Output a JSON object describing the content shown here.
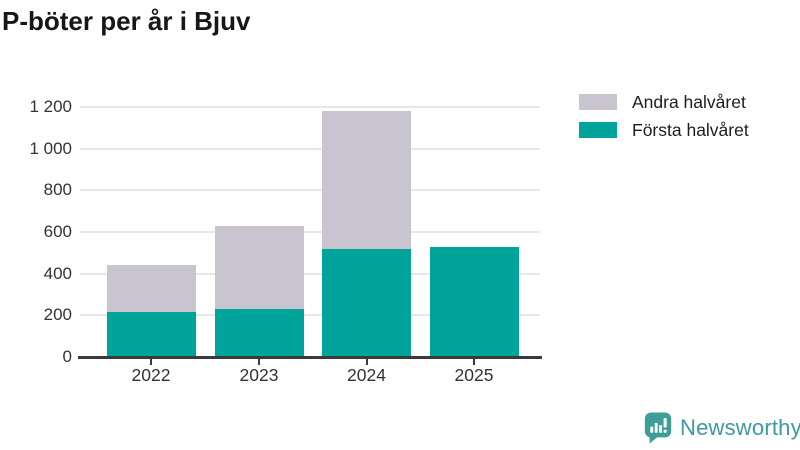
{
  "chart_data": {
    "type": "bar",
    "stacked": true,
    "title": "P-böter per år i Bjuv",
    "categories": [
      "2022",
      "2023",
      "2024",
      "2025"
    ],
    "series": [
      {
        "name": "Första halvåret",
        "color": "#00a49b",
        "values": [
          215,
          230,
          520,
          530
        ]
      },
      {
        "name": "Andra halvåret",
        "color": "#c8c5d0",
        "values": [
          225,
          400,
          660,
          0
        ]
      }
    ],
    "xlabel": "",
    "ylabel": "",
    "ylim": [
      0,
      1200
    ],
    "ytick_interval": 200,
    "ytick_labels": [
      "0",
      "200",
      "400",
      "600",
      "800",
      "1 000",
      "1 200"
    ],
    "grid": true,
    "legend_position": "top-right"
  },
  "legend": {
    "items": [
      {
        "label": "Andra halvåret",
        "color": "#c8c5d0"
      },
      {
        "label": "Första halvåret",
        "color": "#00a49b"
      }
    ]
  },
  "branding": {
    "logo_text": "Newsworthy",
    "logo_icon": "bar-chart-speech-bubble-icon",
    "logo_color": "#3b9aa2"
  },
  "colors": {
    "first_half_teal": "#00a49b",
    "second_half_gray": "#c8c5d0",
    "axis": "#3a3a3a",
    "gridline": "#e7e7ea"
  }
}
